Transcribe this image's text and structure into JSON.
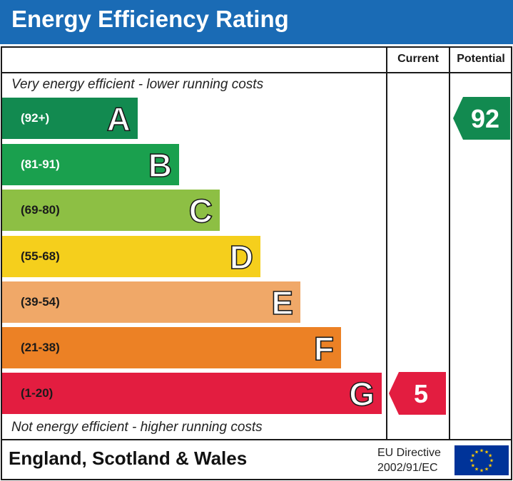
{
  "header": {
    "title": "Energy Efficiency Rating"
  },
  "columns": {
    "current": "Current",
    "potential": "Potential"
  },
  "chart_data": {
    "type": "bar",
    "top_caption": "Very energy efficient - lower running costs",
    "bottom_caption": "Not energy efficient - higher running costs",
    "bands": [
      {
        "letter": "A",
        "range": "(92+)",
        "color": "#128a50",
        "label_dark": false
      },
      {
        "letter": "B",
        "range": "(81-91)",
        "color": "#1aa04e",
        "label_dark": false
      },
      {
        "letter": "C",
        "range": "(69-80)",
        "color": "#8dbf44",
        "label_dark": true
      },
      {
        "letter": "D",
        "range": "(55-68)",
        "color": "#f5cf1c",
        "label_dark": true
      },
      {
        "letter": "E",
        "range": "(39-54)",
        "color": "#f0a868",
        "label_dark": true
      },
      {
        "letter": "F",
        "range": "(21-38)",
        "color": "#ec8125",
        "label_dark": true
      },
      {
        "letter": "G",
        "range": "(1-20)",
        "color": "#e31d40",
        "label_dark": true
      }
    ],
    "current": {
      "value": "5",
      "band": "G",
      "color": "#e31d40"
    },
    "potential": {
      "value": "92",
      "band": "A",
      "color": "#128a50"
    }
  },
  "footer": {
    "region": "England, Scotland & Wales",
    "directive_line1": "EU Directive",
    "directive_line2": "2002/91/EC",
    "flag_icon": "eu-flag-icon",
    "flag_color": "#003399",
    "star_color": "#ffcc00"
  }
}
